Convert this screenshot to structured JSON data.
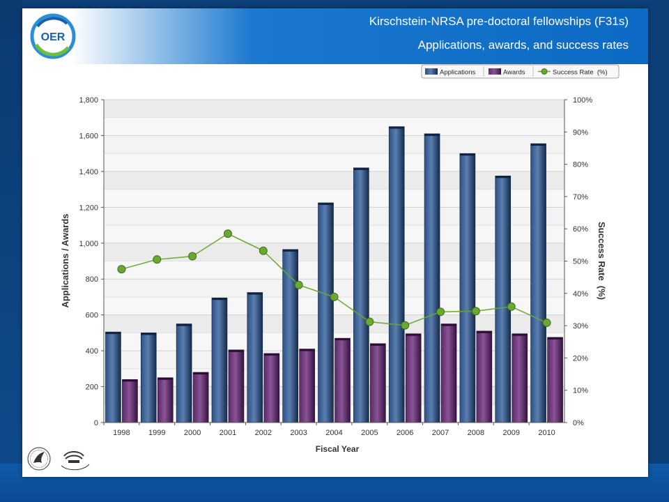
{
  "slide": {
    "title_line1": "Kirschstein-NRSA pre-doctoral fellowships (F31s)",
    "title_line2": "Applications, awards, and success rates",
    "logo_text": "OER",
    "colors": {
      "header_blue": "#0d6ac4",
      "page_background": "#0d3f78"
    }
  },
  "chart_data": {
    "type": "bar",
    "categories": [
      "1998",
      "1999",
      "2000",
      "2001",
      "2002",
      "2003",
      "2004",
      "2005",
      "2006",
      "2007",
      "2008",
      "2009",
      "2010"
    ],
    "series": [
      {
        "name": "Applications",
        "type": "bar",
        "axis": "left",
        "color": "#1f3a64",
        "values": [
          505,
          500,
          550,
          695,
          725,
          965,
          1225,
          1420,
          1650,
          1610,
          1500,
          1375,
          1555
        ]
      },
      {
        "name": "Awards",
        "type": "bar",
        "axis": "left",
        "color": "#4e1d57",
        "values": [
          240,
          250,
          280,
          405,
          385,
          410,
          470,
          440,
          495,
          550,
          510,
          495,
          475
        ]
      },
      {
        "name": "Success Rate  (%)",
        "type": "line",
        "axis": "right",
        "color": "#6aa832",
        "values": [
          47.5,
          50.5,
          51.5,
          58.5,
          53.2,
          42.6,
          38.9,
          31.2,
          30.1,
          34.3,
          34.5,
          35.9,
          30.9
        ]
      }
    ],
    "xlabel": "Fiscal Year",
    "ylabel": "Applications / Awards",
    "y2label": "Success Rate  (%)",
    "ylim": [
      0,
      1800
    ],
    "y2lim": [
      0,
      100
    ],
    "yticks": [
      "0",
      "200",
      "400",
      "600",
      "800",
      "1,000",
      "1,200",
      "1,400",
      "1,600",
      "1,800"
    ],
    "y2ticks": [
      "0%",
      "10%",
      "20%",
      "30%",
      "40%",
      "50%",
      "60%",
      "70%",
      "80%",
      "90%",
      "100%"
    ],
    "grid": true,
    "legend_position": "top-right"
  }
}
